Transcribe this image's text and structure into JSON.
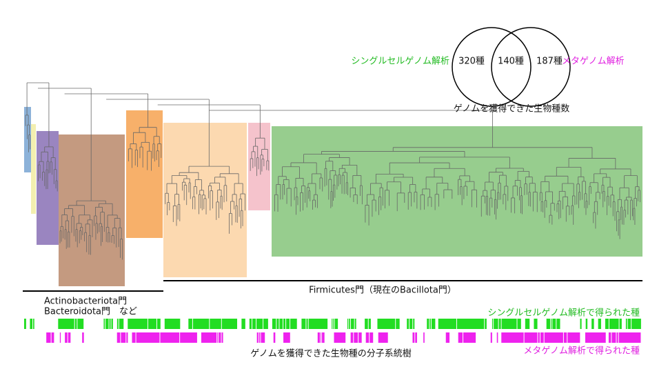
{
  "venn": {
    "left_label": "シングルセルゲノム解析",
    "left_count": "320種",
    "center_count": "140種",
    "right_count": "187種",
    "right_label": "メタゲノム解析",
    "caption": "ゲノムを獲得できた生物種数"
  },
  "tree": {
    "group_label_1": "Actinobacteriota門",
    "group_label_2": "Bacteroidota門　など",
    "firmicutes_label": "Firmicutes門（現在のBacillota門）",
    "caption": "ゲノムを獲得できた生物種の分子系統樹"
  },
  "strips": {
    "single_cell_label": "シングルセルゲノム解析で得られた種",
    "metagenome_label": "メタゲノム解析で得られた種"
  }
}
